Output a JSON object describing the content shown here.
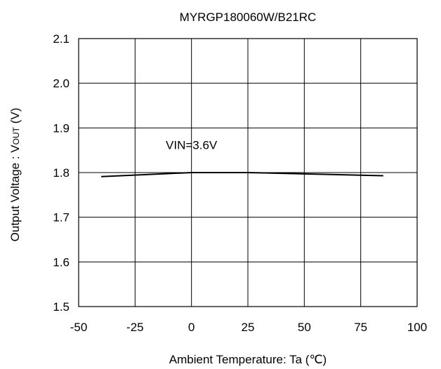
{
  "chart_data": {
    "type": "line",
    "title": "MYRGP180060W/B21RC",
    "xlabel": "Ambient Temperature: Ta (℃)",
    "ylabel_main": "Output Voltage : V",
    "ylabel_sub": "OUT",
    "ylabel_unit": " (V)",
    "xlim": [
      -50,
      100
    ],
    "ylim": [
      1.5,
      2.1
    ],
    "x_ticks": [
      -50,
      -25,
      0,
      25,
      50,
      75,
      100
    ],
    "x_tick_labels": [
      "-50",
      "-25",
      "0",
      "25",
      "50",
      "75",
      "100"
    ],
    "y_ticks": [
      1.5,
      1.6,
      1.7,
      1.8,
      1.9,
      2.0,
      2.1
    ],
    "y_tick_labels": [
      "1.5",
      "1.6",
      "1.7",
      "1.8",
      "1.9",
      "2.0",
      "2.1"
    ],
    "grid": true,
    "series": [
      {
        "x": [
          -40,
          0,
          25,
          85
        ],
        "y": [
          1.791,
          1.8,
          1.8,
          1.793
        ]
      }
    ],
    "annotations": [
      {
        "text": "VIN=3.6V",
        "x": 0,
        "y": 1.853
      }
    ]
  }
}
